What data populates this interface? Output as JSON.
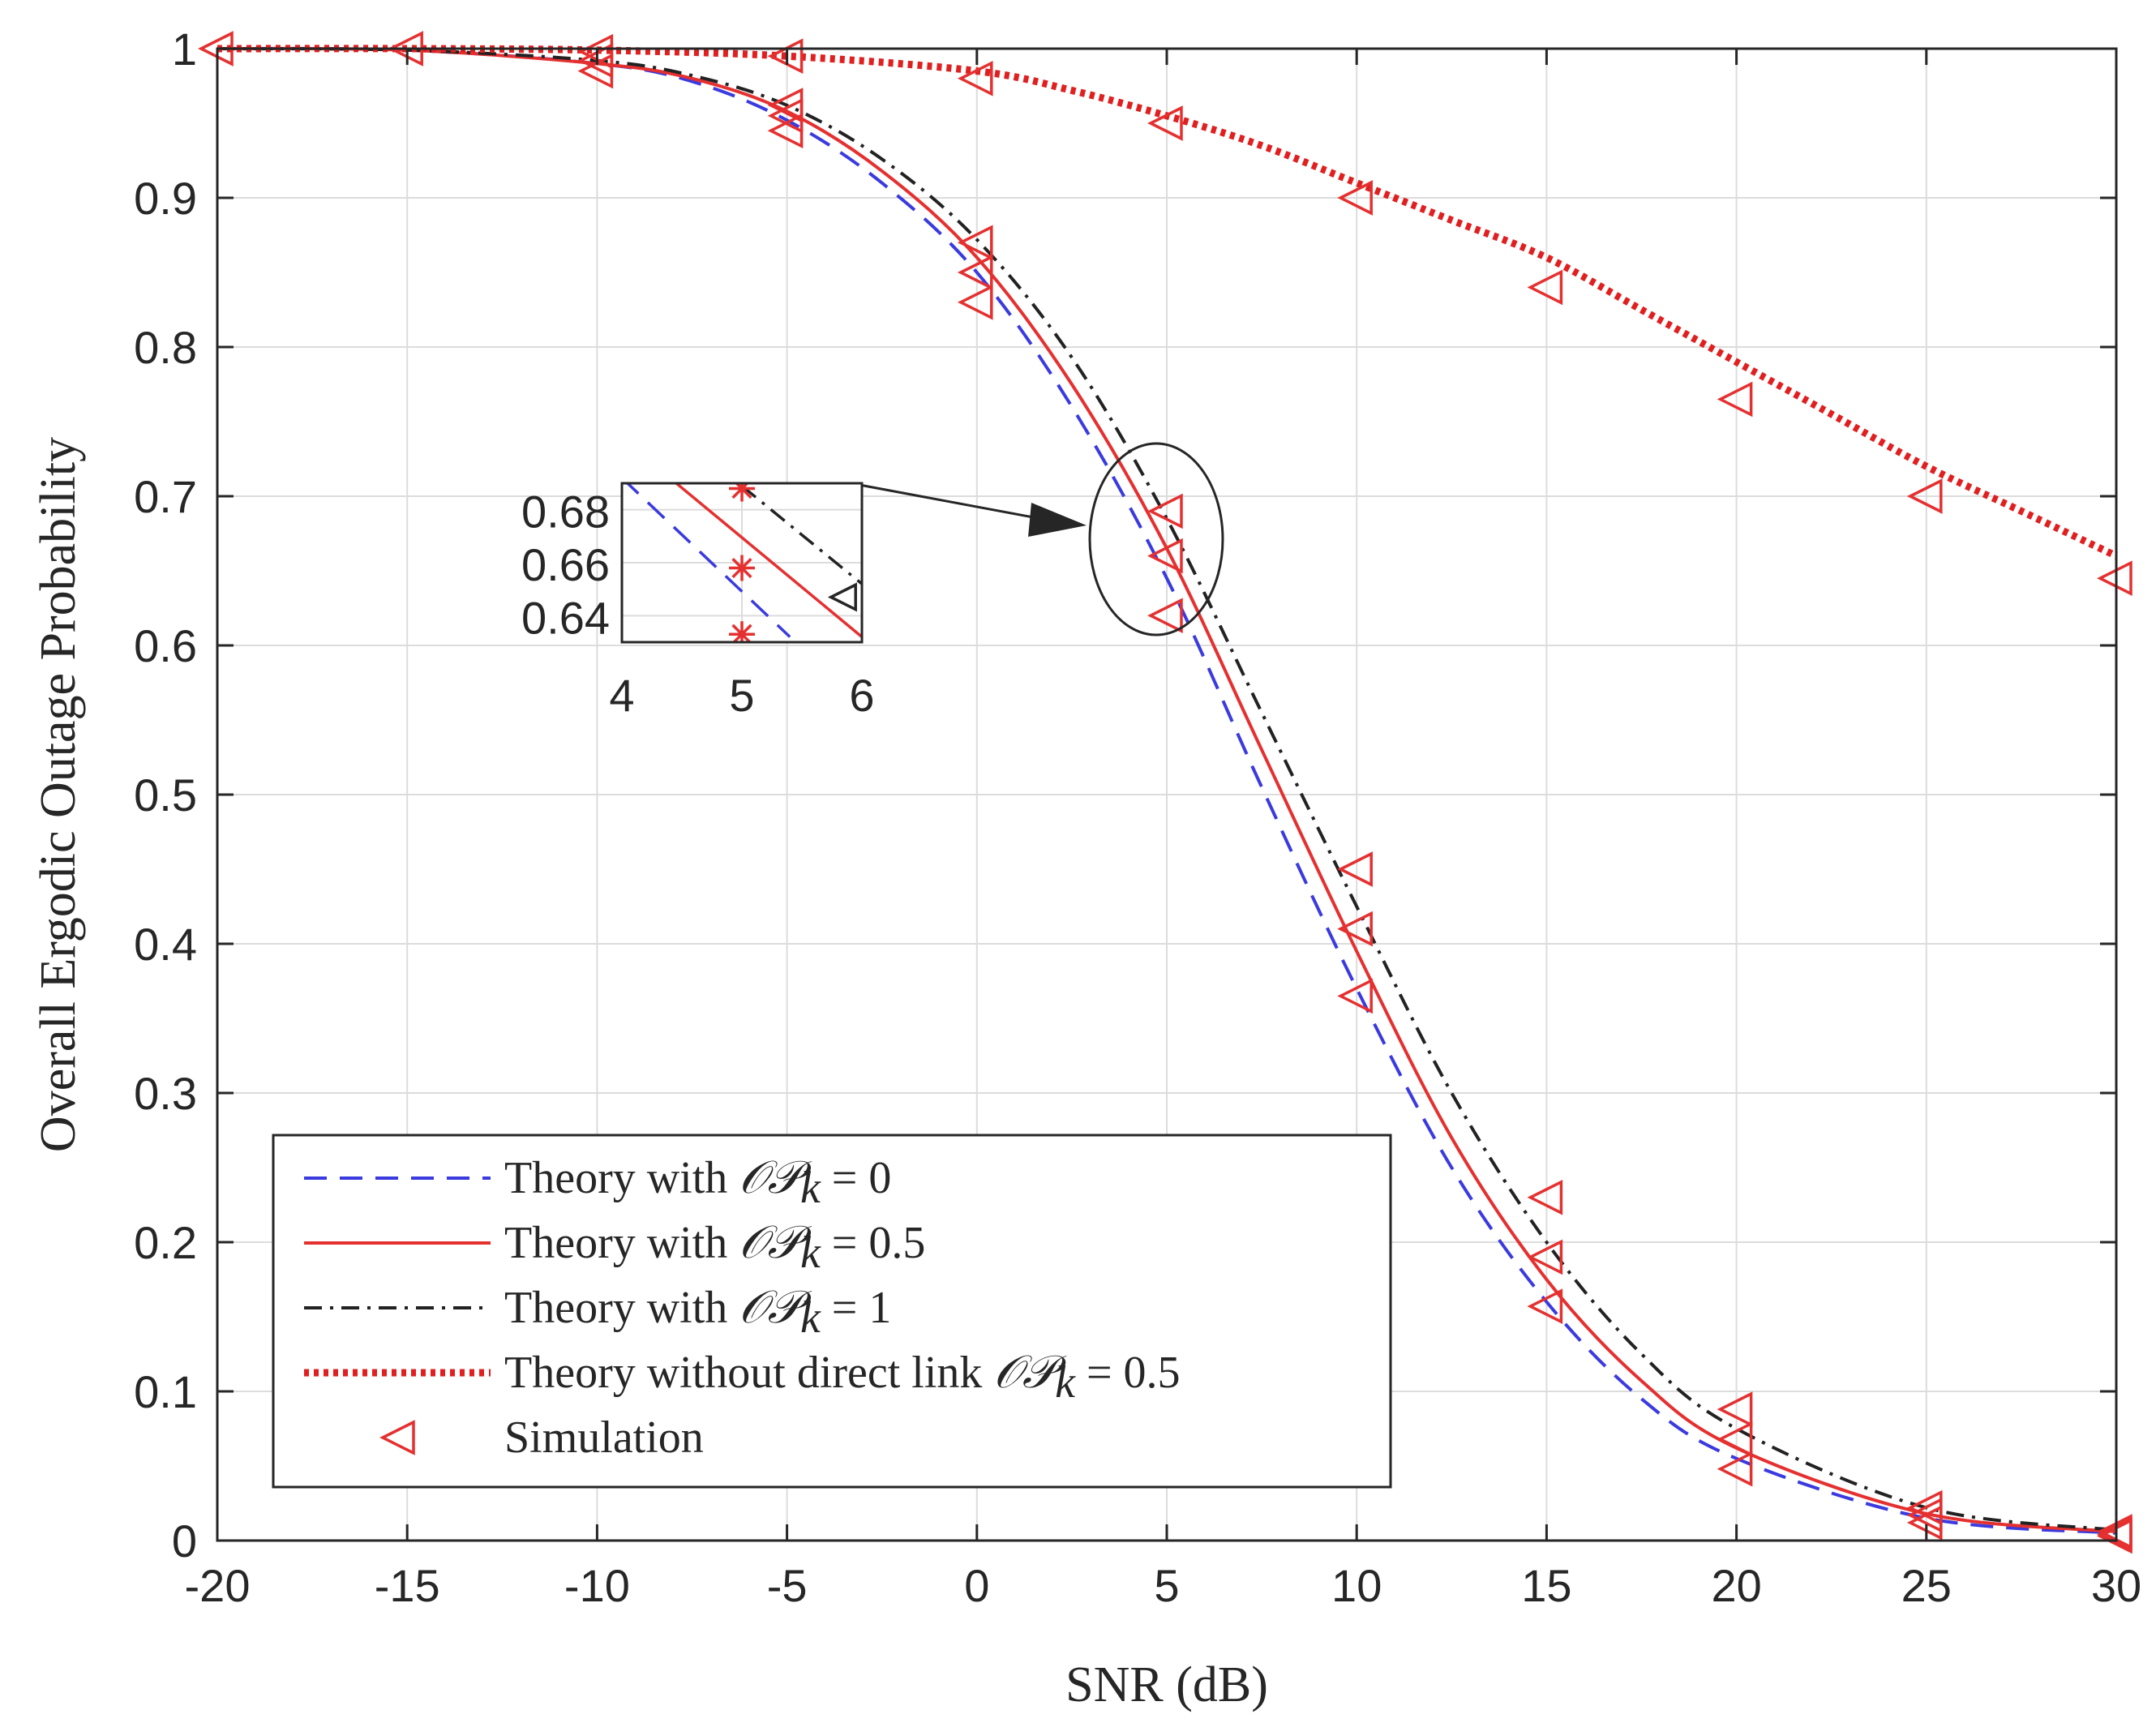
{
  "chart_data": {
    "type": "line",
    "xlabel": "SNR (dB)",
    "ylabel": "Overall Ergodic Outage Probability",
    "xlim": [
      -20,
      30
    ],
    "ylim": [
      0,
      1
    ],
    "grid": true,
    "x_ticks": [
      "-20",
      "-15",
      "-10",
      "-5",
      "0",
      "5",
      "10",
      "15",
      "20",
      "25",
      "30"
    ],
    "y_ticks": [
      "0",
      "0.1",
      "0.2",
      "0.3",
      "0.4",
      "0.5",
      "0.6",
      "0.7",
      "0.8",
      "0.9",
      "1"
    ],
    "legend_position": "bottom-left",
    "series": [
      {
        "name": "Theory with OP_k = 0",
        "legend_prefix": "Theory with ",
        "legend_math": "𝒪𝒫",
        "legend_sub": "k",
        "legend_suffix": " = 0",
        "color": "#3a3adf",
        "style": "dashed",
        "x": [
          -20,
          -15,
          -10,
          -7.5,
          -5,
          -2.5,
          0,
          2.5,
          5,
          7.5,
          10,
          12.5,
          15,
          17.5,
          20,
          25,
          30
        ],
        "y": [
          1.0,
          0.999,
          0.99,
          0.978,
          0.952,
          0.91,
          0.85,
          0.76,
          0.645,
          0.505,
          0.37,
          0.25,
          0.16,
          0.095,
          0.055,
          0.015,
          0.005
        ]
      },
      {
        "name": "Theory with OP_k = 0.5",
        "legend_prefix": "Theory with ",
        "legend_math": "𝒪𝒫",
        "legend_sub": "k",
        "legend_suffix": " = 0.5",
        "color": "#e53030",
        "style": "solid",
        "x": [
          -20,
          -15,
          -10,
          -7.5,
          -5,
          -2.5,
          0,
          2.5,
          5,
          7.5,
          10,
          12.5,
          15,
          17.5,
          20,
          25,
          30
        ],
        "y": [
          1.0,
          0.999,
          0.99,
          0.98,
          0.958,
          0.918,
          0.86,
          0.775,
          0.665,
          0.53,
          0.395,
          0.27,
          0.175,
          0.107,
          0.062,
          0.018,
          0.006
        ]
      },
      {
        "name": "Theory with OP_k = 1",
        "legend_prefix": "Theory with ",
        "legend_math": "𝒪𝒫",
        "legend_sub": "k",
        "legend_suffix": " = 1",
        "color": "#222222",
        "style": "dashdot",
        "x": [
          -20,
          -15,
          -10,
          -7.5,
          -5,
          -2.5,
          0,
          2.5,
          5,
          7.5,
          10,
          12.5,
          15,
          17.5,
          20,
          25,
          30
        ],
        "y": [
          1.0,
          0.999,
          0.992,
          0.982,
          0.962,
          0.926,
          0.872,
          0.793,
          0.685,
          0.555,
          0.425,
          0.3,
          0.2,
          0.125,
          0.075,
          0.022,
          0.007
        ]
      },
      {
        "name": "Theory without direct link OP_k = 0.5",
        "legend_prefix": "Theory without direct link ",
        "legend_math": "𝒪𝒫",
        "legend_sub": "k",
        "legend_suffix": " = 0.5",
        "color": "#e02020",
        "style": "dotted",
        "x": [
          -20,
          -15,
          -10,
          -5,
          0,
          2.5,
          5,
          7.5,
          10,
          12.5,
          15,
          17.5,
          20,
          22.5,
          25,
          27.5,
          30
        ],
        "y": [
          1.0,
          1.0,
          0.999,
          0.995,
          0.985,
          0.972,
          0.955,
          0.935,
          0.91,
          0.885,
          0.86,
          0.825,
          0.79,
          0.755,
          0.72,
          0.69,
          0.66
        ]
      },
      {
        "name": "Simulation",
        "legend_label": "Simulation",
        "color": "#e53030",
        "style": "marker-triangle-left",
        "points": [
          [
            -20,
            1.0
          ],
          [
            -15,
            1.0
          ],
          [
            -10,
            0.998
          ],
          [
            -10,
            0.992
          ],
          [
            -10,
            0.985
          ],
          [
            -5,
            0.995
          ],
          [
            -5,
            0.962
          ],
          [
            -5,
            0.955
          ],
          [
            -5,
            0.945
          ],
          [
            0,
            0.98
          ],
          [
            0,
            0.87
          ],
          [
            0,
            0.85
          ],
          [
            0,
            0.83
          ],
          [
            5,
            0.95
          ],
          [
            5,
            0.69
          ],
          [
            5,
            0.66
          ],
          [
            5,
            0.62
          ],
          [
            10,
            0.9
          ],
          [
            10,
            0.45
          ],
          [
            10,
            0.41
          ],
          [
            10,
            0.365
          ],
          [
            15,
            0.84
          ],
          [
            15,
            0.23
          ],
          [
            15,
            0.19
          ],
          [
            15,
            0.157
          ],
          [
            20,
            0.765
          ],
          [
            20,
            0.088
          ],
          [
            20,
            0.068
          ],
          [
            20,
            0.048
          ],
          [
            25,
            0.7
          ],
          [
            25,
            0.022
          ],
          [
            25,
            0.017
          ],
          [
            25,
            0.012
          ],
          [
            30,
            0.645
          ],
          [
            30,
            0.006
          ],
          [
            30,
            0.004
          ],
          [
            30,
            0.003
          ]
        ]
      }
    ],
    "inset": {
      "xlim": [
        4,
        6
      ],
      "ylim": [
        0.63,
        0.69
      ],
      "x_ticks": [
        "4",
        "5",
        "6"
      ],
      "y_ticks": [
        "0.64",
        "0.66",
        "0.68"
      ],
      "annotation": "zoom of region around SNR = 5 dB"
    }
  }
}
